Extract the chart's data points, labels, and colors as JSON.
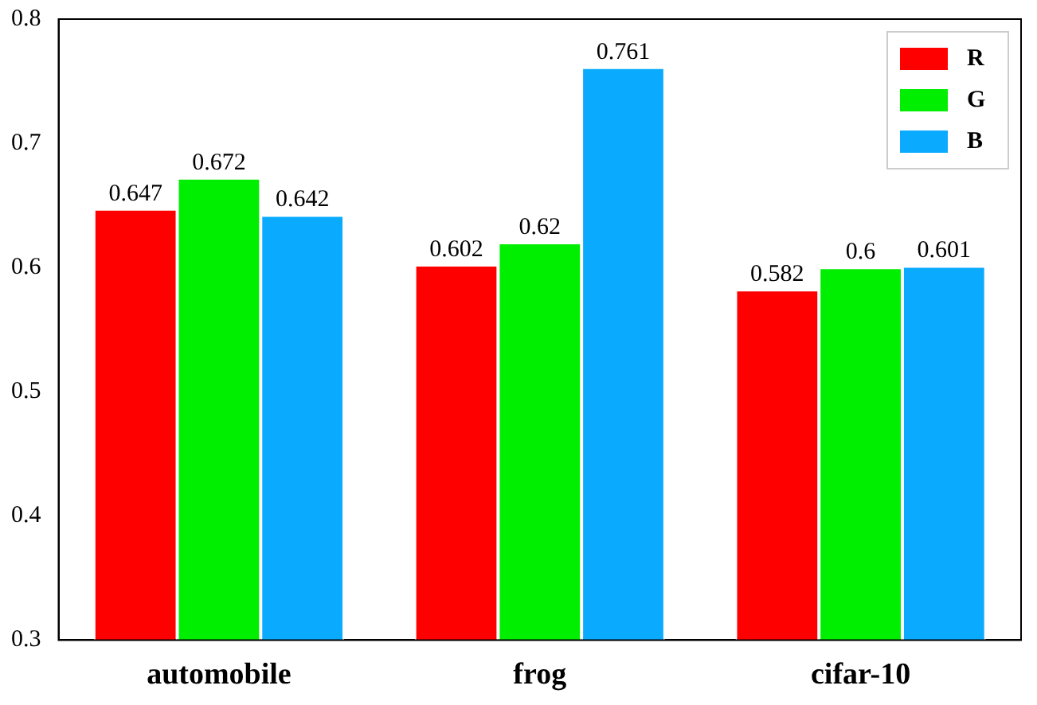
{
  "chart_data": {
    "type": "bar",
    "categories": [
      "automobile",
      "frog",
      "cifar-10"
    ],
    "series": [
      {
        "name": "R",
        "color": "#ff0000",
        "values": [
          0.647,
          0.602,
          0.582
        ]
      },
      {
        "name": "G",
        "color": "#00ee00",
        "values": [
          0.672,
          0.62,
          0.6
        ]
      },
      {
        "name": "B",
        "color": "#0aaaff",
        "values": [
          0.642,
          0.761,
          0.601
        ]
      }
    ],
    "ylim": [
      0.3,
      0.8
    ],
    "yticks": [
      0.3,
      0.4,
      0.5,
      0.6,
      0.7,
      0.8
    ],
    "grid": false,
    "legend": "top right",
    "data_labels": true
  }
}
